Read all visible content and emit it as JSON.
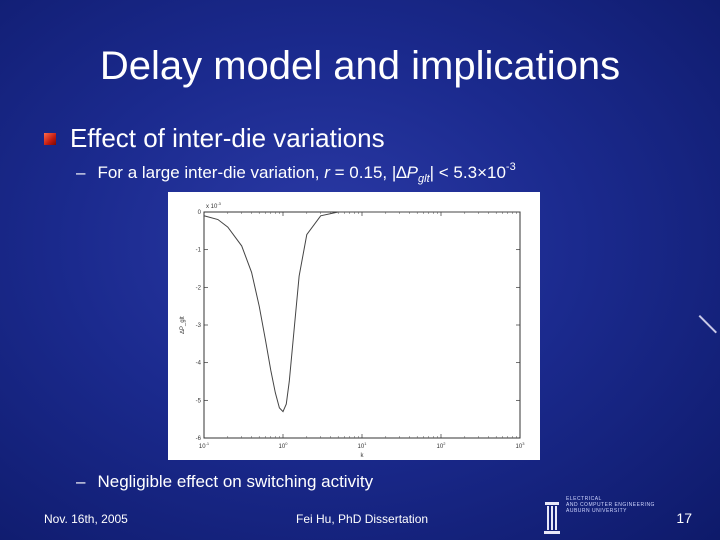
{
  "slide": {
    "title": "Delay model and implications",
    "bullet": "Effect of inter-die variations",
    "sub1": {
      "dash": "–",
      "text_a": "For a large inter-die variation,",
      "r": "r",
      "text_b": "= 0.15, |",
      "delta": "∆",
      "p": "P",
      "p_sub": "glt",
      "text_c": "| < 5.3×10",
      "exp": "-3"
    },
    "sub2": {
      "dash": "–",
      "text": "Negligible effect on switching activity"
    },
    "footer": {
      "date": "Nov. 16th, 2005",
      "author": "Fei Hu, PhD Dissertation",
      "page": "17",
      "logo_lines": [
        "ELECTRICAL",
        "AND COMPUTER ENGINEERING",
        "AUBURN UNIVERSITY"
      ]
    }
  },
  "chart_data": {
    "type": "line",
    "xscale": "log",
    "xlim": [
      0.1,
      1000
    ],
    "ylim": [
      -0.006,
      0
    ],
    "x_ticks": [
      "10^-1",
      "10^0",
      "10^1",
      "10^2",
      "10^3"
    ],
    "y_ticks": [
      "0",
      "-1",
      "-2",
      "-3",
      "-4",
      "-5",
      "-6"
    ],
    "y_multiplier": "x 10^-3",
    "xlabel": "k",
    "ylabel": "∆P_glt",
    "series": [
      {
        "x": [
          0.1,
          0.15,
          0.2,
          0.3,
          0.4,
          0.5,
          0.6,
          0.7,
          0.8,
          0.9,
          1.0,
          1.1,
          1.2,
          1.4,
          1.6,
          2.0,
          3.0,
          5.0,
          10,
          100,
          1000
        ],
        "y": [
          -0.0001,
          -0.0002,
          -0.0004,
          -0.0009,
          -0.0016,
          -0.0025,
          -0.0034,
          -0.0042,
          -0.0048,
          -0.0052,
          -0.0053,
          -0.0051,
          -0.0045,
          -0.003,
          -0.0017,
          -0.0006,
          -0.0001,
          0,
          0,
          0,
          0
        ]
      }
    ]
  }
}
